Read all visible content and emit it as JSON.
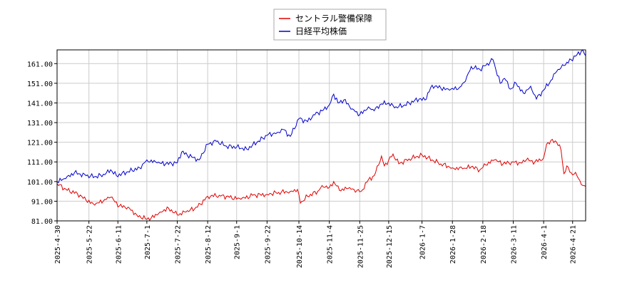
{
  "chart_data": {
    "type": "line",
    "title": "",
    "xlabel": "",
    "ylabel": "",
    "ylim": [
      81.0,
      168.0
    ],
    "yticks": [
      "81.00",
      "91.00",
      "101.00",
      "111.00",
      "121.00",
      "131.00",
      "141.00",
      "151.00",
      "161.00"
    ],
    "x_range": [
      "2025-04-30",
      "2026-04-30"
    ],
    "xticks": [
      "2025-4-30",
      "2025-5-22",
      "2025-6-11",
      "2025-7-1",
      "2025-7-22",
      "2025-8-12",
      "2025-9-1",
      "2025-9-22",
      "2025-10-14",
      "2025-11-4",
      "2025-11-25",
      "2025-12-15",
      "2026-1-7",
      "2026-1-28",
      "2026-2-18",
      "2026-3-11",
      "2026-4-1",
      "2026-4-21"
    ],
    "grid": true,
    "legend_position": "top-center",
    "series": [
      {
        "name": "セントラル警備保障",
        "color": "#e00000",
        "points": [
          [
            "2025-04-30",
            100.0
          ],
          [
            "2025-05-07",
            96.5
          ],
          [
            "2025-05-14",
            95.0
          ],
          [
            "2025-05-20",
            91.5
          ],
          [
            "2025-05-26",
            89.0
          ],
          [
            "2025-06-02",
            92.0
          ],
          [
            "2025-06-06",
            93.0
          ],
          [
            "2025-06-12",
            88.5
          ],
          [
            "2025-06-18",
            88.0
          ],
          [
            "2025-06-24",
            84.0
          ],
          [
            "2025-06-30",
            82.0
          ],
          [
            "2025-07-04",
            82.5
          ],
          [
            "2025-07-10",
            85.5
          ],
          [
            "2025-07-16",
            87.5
          ],
          [
            "2025-07-22",
            84.0
          ],
          [
            "2025-07-28",
            85.5
          ],
          [
            "2025-08-05",
            88.0
          ],
          [
            "2025-08-12",
            93.5
          ],
          [
            "2025-08-20",
            94.0
          ],
          [
            "2025-08-27",
            93.0
          ],
          [
            "2025-09-04",
            92.0
          ],
          [
            "2025-09-12",
            94.0
          ],
          [
            "2025-09-22",
            94.5
          ],
          [
            "2025-09-30",
            95.5
          ],
          [
            "2025-10-08",
            96.0
          ],
          [
            "2025-10-13",
            97.0
          ],
          [
            "2025-10-15",
            90.0
          ],
          [
            "2025-10-20",
            93.5
          ],
          [
            "2025-10-27",
            96.0
          ],
          [
            "2025-10-30",
            99.0
          ],
          [
            "2025-11-04",
            98.0
          ],
          [
            "2025-11-07",
            101.0
          ],
          [
            "2025-11-11",
            96.5
          ],
          [
            "2025-11-17",
            97.5
          ],
          [
            "2025-11-21",
            97.0
          ],
          [
            "2025-11-26",
            96.0
          ],
          [
            "2025-12-01",
            102.0
          ],
          [
            "2025-12-05",
            104.0
          ],
          [
            "2025-12-10",
            114.0
          ],
          [
            "2025-12-12",
            109.0
          ],
          [
            "2025-12-15",
            112.0
          ],
          [
            "2025-12-18",
            115.0
          ],
          [
            "2025-12-22",
            110.0
          ],
          [
            "2025-12-29",
            112.5
          ],
          [
            "2026-01-07",
            114.5
          ],
          [
            "2026-01-14",
            112.0
          ],
          [
            "2026-01-20",
            110.0
          ],
          [
            "2026-01-28",
            108.0
          ],
          [
            "2026-02-04",
            107.5
          ],
          [
            "2026-02-10",
            108.5
          ],
          [
            "2026-02-16",
            107.0
          ],
          [
            "2026-02-20",
            109.5
          ],
          [
            "2026-02-26",
            112.0
          ],
          [
            "2026-03-04",
            110.0
          ],
          [
            "2026-03-10",
            111.0
          ],
          [
            "2026-03-16",
            110.5
          ],
          [
            "2026-03-20",
            112.0
          ],
          [
            "2026-03-26",
            111.0
          ],
          [
            "2026-04-01",
            113.0
          ],
          [
            "2026-04-03",
            120.0
          ],
          [
            "2026-04-06",
            122.0
          ],
          [
            "2026-04-10",
            121.0
          ],
          [
            "2026-04-13",
            117.0
          ],
          [
            "2026-04-15",
            105.0
          ],
          [
            "2026-04-17",
            109.0
          ],
          [
            "2026-04-20",
            105.5
          ],
          [
            "2026-04-24",
            104.0
          ],
          [
            "2026-04-28",
            99.0
          ],
          [
            "2026-04-30",
            98.5
          ]
        ]
      },
      {
        "name": "日経平均株価",
        "color": "#0000cc",
        "points": [
          [
            "2025-04-30",
            101.0
          ],
          [
            "2025-05-06",
            102.5
          ],
          [
            "2025-05-12",
            105.5
          ],
          [
            "2025-05-20",
            104.0
          ],
          [
            "2025-05-26",
            103.5
          ],
          [
            "2025-06-02",
            104.5
          ],
          [
            "2025-06-06",
            107.0
          ],
          [
            "2025-06-10",
            104.0
          ],
          [
            "2025-06-18",
            106.0
          ],
          [
            "2025-06-26",
            108.0
          ],
          [
            "2025-07-01",
            112.0
          ],
          [
            "2025-07-08",
            110.5
          ],
          [
            "2025-07-14",
            110.0
          ],
          [
            "2025-07-22",
            110.5
          ],
          [
            "2025-07-25",
            116.0
          ],
          [
            "2025-08-01",
            113.5
          ],
          [
            "2025-08-06",
            112.0
          ],
          [
            "2025-08-12",
            120.0
          ],
          [
            "2025-08-18",
            121.5
          ],
          [
            "2025-08-25",
            119.0
          ],
          [
            "2025-09-01",
            118.5
          ],
          [
            "2025-09-08",
            117.5
          ],
          [
            "2025-09-15",
            121.0
          ],
          [
            "2025-09-22",
            124.5
          ],
          [
            "2025-09-29",
            126.0
          ],
          [
            "2025-10-03",
            127.5
          ],
          [
            "2025-10-08",
            124.0
          ],
          [
            "2025-10-14",
            133.0
          ],
          [
            "2025-10-20",
            131.5
          ],
          [
            "2025-10-24",
            135.0
          ],
          [
            "2025-10-30",
            137.0
          ],
          [
            "2025-11-04",
            140.0
          ],
          [
            "2025-11-07",
            145.5
          ],
          [
            "2025-11-10",
            141.0
          ],
          [
            "2025-11-14",
            142.5
          ],
          [
            "2025-11-20",
            138.0
          ],
          [
            "2025-11-25",
            135.0
          ],
          [
            "2025-12-01",
            139.0
          ],
          [
            "2025-12-05",
            137.0
          ],
          [
            "2025-12-10",
            140.5
          ],
          [
            "2025-12-15",
            141.0
          ],
          [
            "2025-12-19",
            138.5
          ],
          [
            "2025-12-26",
            140.0
          ],
          [
            "2026-01-05",
            143.0
          ],
          [
            "2026-01-09",
            142.5
          ],
          [
            "2026-01-14",
            150.0
          ],
          [
            "2026-01-20",
            148.5
          ],
          [
            "2026-01-26",
            147.5
          ],
          [
            "2026-02-02",
            149.0
          ],
          [
            "2026-02-06",
            152.0
          ],
          [
            "2026-02-10",
            159.5
          ],
          [
            "2026-02-16",
            158.0
          ],
          [
            "2026-02-20",
            160.0
          ],
          [
            "2026-02-25",
            163.0
          ],
          [
            "2026-03-02",
            151.0
          ],
          [
            "2026-03-05",
            153.5
          ],
          [
            "2026-03-09",
            148.0
          ],
          [
            "2026-03-13",
            151.0
          ],
          [
            "2026-03-18",
            146.0
          ],
          [
            "2026-03-23",
            149.5
          ],
          [
            "2026-03-27",
            143.0
          ],
          [
            "2026-04-01",
            147.5
          ],
          [
            "2026-04-06",
            152.5
          ],
          [
            "2026-04-10",
            157.0
          ],
          [
            "2026-04-15",
            160.0
          ],
          [
            "2026-04-20",
            163.0
          ],
          [
            "2026-04-24",
            165.5
          ],
          [
            "2026-04-28",
            168.0
          ],
          [
            "2026-04-30",
            165.0
          ]
        ]
      }
    ]
  }
}
